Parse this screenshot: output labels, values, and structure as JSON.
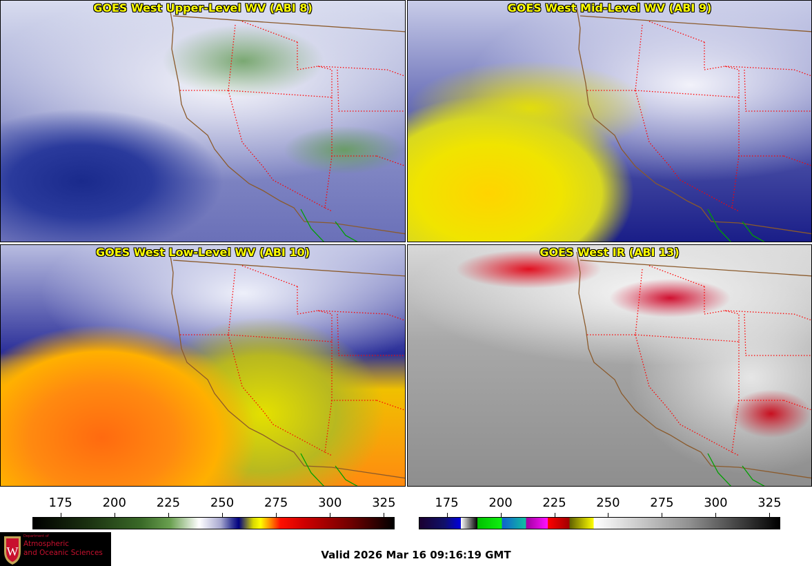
{
  "panels": [
    {
      "title": "GOES West Upper-Level WV (ABI 8)"
    },
    {
      "title": "GOES West Mid-Level WV (ABI 9)"
    },
    {
      "title": "GOES West Low-Level WV (ABI 10)"
    },
    {
      "title": "GOES West IR (ABI 13)"
    }
  ],
  "colorbars": {
    "wv": {
      "ticks": [
        "175",
        "200",
        "225",
        "250",
        "275",
        "300",
        "325"
      ],
      "min": 162,
      "max": 330
    },
    "ir": {
      "ticks": [
        "175",
        "200",
        "225",
        "250",
        "275",
        "300",
        "325"
      ],
      "min": 162,
      "max": 330
    }
  },
  "logo": {
    "line1": "Department of",
    "line2": "Atmospheric",
    "line3": "and Oceanic Sciences"
  },
  "valid": "Valid 2026 Mar 16 09:16:19 GMT",
  "colors": {
    "title": "#ffff00",
    "state_border": "#ff0000",
    "coast": "#8b5a2b",
    "mexico": "#00a000"
  }
}
